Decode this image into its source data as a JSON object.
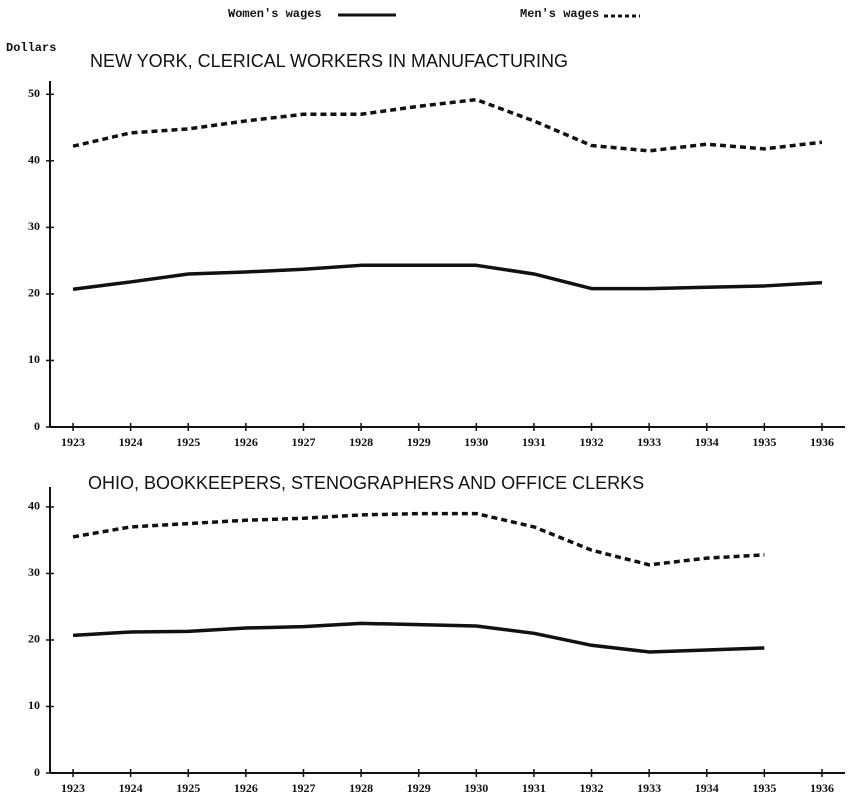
{
  "chart_data": [
    {
      "type": "line",
      "title": "NEW YORK, CLERICAL WORKERS IN MANUFACTURING",
      "y_label": "Dollars",
      "x": [
        1923,
        1924,
        1925,
        1926,
        1927,
        1928,
        1929,
        1930,
        1931,
        1932,
        1933,
        1934,
        1935,
        1936
      ],
      "series": [
        {
          "name": "Women's wages",
          "color": "#111111",
          "dash": false,
          "values": [
            20.7,
            21.8,
            23,
            23.3,
            23.7,
            24.3,
            24.3,
            24.3,
            23,
            20.8,
            20.8,
            21,
            21.2,
            21.7
          ]
        },
        {
          "name": "Men's wages",
          "color": "#111111",
          "dash": true,
          "values": [
            42.2,
            44.2,
            44.8,
            46,
            47,
            47,
            48.2,
            49.2,
            46,
            42.3,
            41.5,
            42.5,
            41.8,
            42.8
          ]
        }
      ],
      "xlim": [
        1922.6,
        1936.4
      ],
      "xticks": [
        1923,
        1924,
        1925,
        1926,
        1927,
        1928,
        1929,
        1930,
        1931,
        1932,
        1933,
        1934,
        1935,
        1936
      ],
      "ylim": [
        0,
        52
      ],
      "yticks": [
        0,
        10,
        20,
        30,
        40,
        50
      ]
    },
    {
      "type": "line",
      "title": "OHIO, BOOKKEEPERS, STENOGRAPHERS AND OFFICE CLERKS",
      "x": [
        1923,
        1924,
        1925,
        1926,
        1927,
        1928,
        1929,
        1930,
        1931,
        1932,
        1933,
        1934,
        1935,
        1936
      ],
      "series": [
        {
          "color": "#111111",
          "dash": false,
          "values": [
            20.7,
            21.2,
            21.3,
            21.8,
            22,
            22.5,
            22.3,
            22.1,
            21,
            19.2,
            18.2,
            18.5,
            18.8,
            null
          ]
        },
        {
          "color": "#111111",
          "dash": true,
          "values": [
            35.5,
            37,
            37.5,
            38,
            38.3,
            38.8,
            39,
            39,
            37,
            33.5,
            31.3,
            32.3,
            32.8,
            null
          ]
        }
      ],
      "xlim": [
        1922.6,
        1936.4
      ],
      "xticks": [
        1923,
        1924,
        1925,
        1926,
        1927,
        1928,
        1929,
        1930,
        1931,
        1932,
        1933,
        1934,
        1935,
        1936
      ],
      "ylim": [
        0,
        43
      ],
      "yticks": [
        0,
        10,
        20,
        30,
        40
      ]
    }
  ]
}
